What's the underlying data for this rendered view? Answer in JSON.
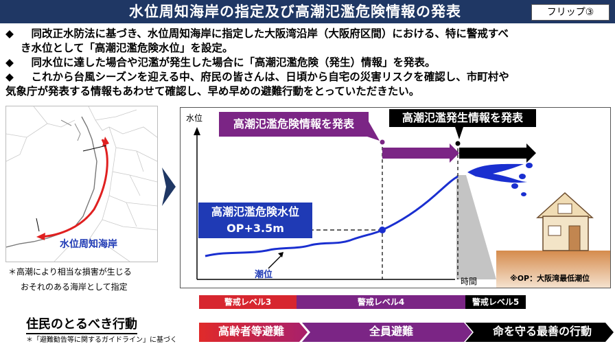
{
  "header": {
    "title": "水位周知海岸の指定及び高潮氾濫危険情報の発表",
    "flip_label": "フリップ③"
  },
  "bullets": [
    {
      "marker": "◆",
      "line1": "　同改正水防法に基づき、水位周知海岸に指定した大阪湾沿岸（大阪府区間）における、特に警戒すべ",
      "line2": "き水位として「高潮氾濫危険水位」を設定。"
    },
    {
      "marker": "◆",
      "line1": "　同水位に達した場合や氾濫が発生した場合に「高潮氾濫危険（発生）情報」を発表。",
      "line2": ""
    },
    {
      "marker": "◆",
      "line1": "　これから台風シーズンを迎える中、府民の皆さんは、日頃から自宅の災害リスクを確認し、市町村や",
      "line2": "気象庁が発表する情報もあわせて確認し、早め早めの避難行動をとっていただきたい。"
    }
  ],
  "map": {
    "label": "水位周知海岸",
    "caption_line1": "＊高潮により相当な損害が生じる",
    "caption_line2": "おそれのある海岸として指定"
  },
  "chart": {
    "y_axis_label": "水位",
    "x_axis_label": "時間",
    "danger_info_label": "高潮氾濫危険情報を発表",
    "occurrence_info_label": "高潮氾濫発生情報を発表",
    "danger_level_label_line1": "高潮氾濫危険水位",
    "danger_level_label_line2": "OP+3.5m",
    "tide_label": "潮位",
    "op_note": "※OP：大阪湾最低潮位"
  },
  "levels": [
    {
      "label": "警戒レベル3",
      "color": "#d7262f"
    },
    {
      "label": "警戒レベル4",
      "color": "#7b2585"
    },
    {
      "label": "警戒レベル5",
      "color": "#000000"
    }
  ],
  "actions": {
    "title": "住民のとるべき行動",
    "note": "＊「避難勧告等に関するガイドライン」に基づく",
    "items": [
      "高齢者等避難",
      "全員避難",
      "命を守る最善の行動"
    ]
  },
  "colors": {
    "title_bg": "#1f3764",
    "accent_blue": "#1f3ab5",
    "tide_line": "#1a2fd0",
    "purple": "#7b2585",
    "red": "#d7262f"
  }
}
